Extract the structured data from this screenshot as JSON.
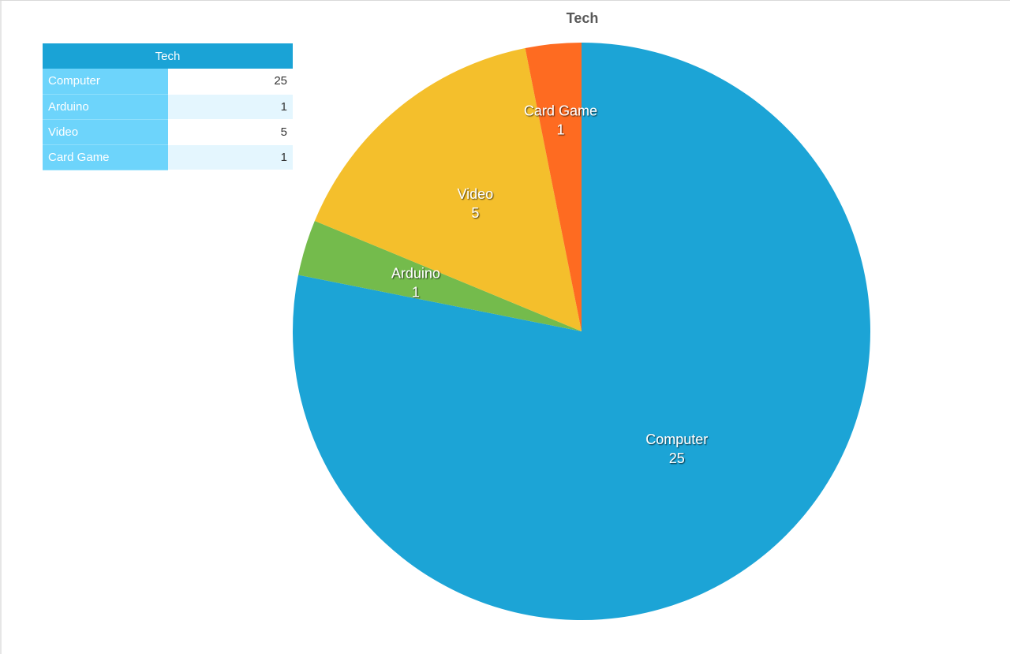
{
  "chart_data": {
    "type": "pie",
    "title": "Tech",
    "categories": [
      "Computer",
      "Arduino",
      "Video",
      "Card Game"
    ],
    "values": [
      25,
      1,
      5,
      1
    ],
    "colors": [
      "#1ca4d6",
      "#74bb4c",
      "#f4bf2c",
      "#fe6b21"
    ],
    "start_angle_deg": 0,
    "direction": "clockwise",
    "table": {
      "header": "Tech",
      "rows": [
        {
          "label": "Computer",
          "value": "25"
        },
        {
          "label": "Arduino",
          "value": "1"
        },
        {
          "label": "Video",
          "value": "5"
        },
        {
          "label": "Card Game",
          "value": "1"
        }
      ]
    }
  }
}
